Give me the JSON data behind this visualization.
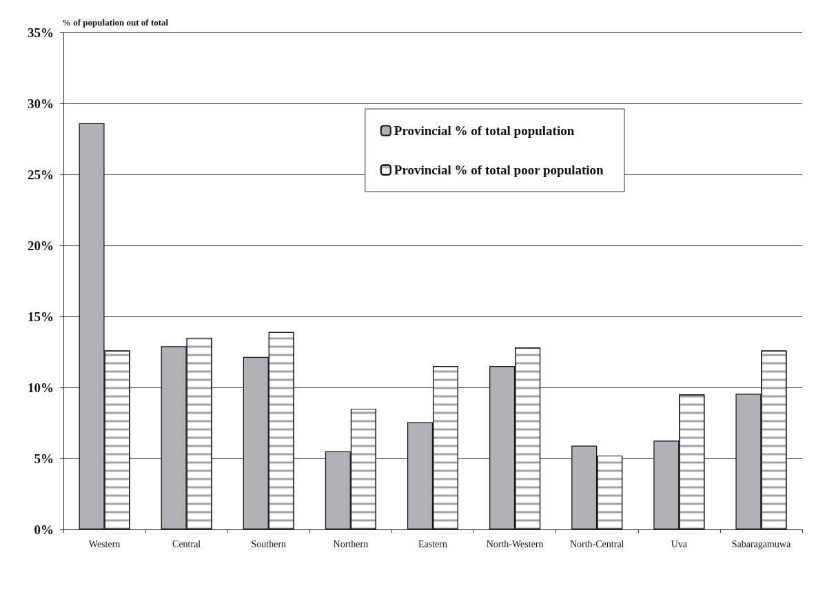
{
  "chart_data": {
    "type": "bar",
    "ylabel": "% of population out of total",
    "categories": [
      "Western",
      "Central",
      "Southern",
      "Northern",
      "Eastern",
      "North-Western",
      "North-Central",
      "Uva",
      "Sabaragamuwa"
    ],
    "series": [
      {
        "name": "Provincial % of total population",
        "color": "#b0b1b5",
        "values": [
          28.6,
          12.9,
          12.15,
          5.5,
          7.55,
          11.5,
          5.9,
          6.25,
          9.55
        ]
      },
      {
        "name": "Provincial % of total poor population",
        "color": "#ffffff",
        "values": [
          12.6,
          13.5,
          13.9,
          8.5,
          11.5,
          12.8,
          5.2,
          9.5,
          12.6
        ]
      }
    ],
    "ylim": [
      0,
      35
    ],
    "yticks": [
      {
        "value": 0,
        "label": "0%"
      },
      {
        "value": 5,
        "label": "5%"
      },
      {
        "value": 10,
        "label": "10%"
      },
      {
        "value": 15,
        "label": "15%"
      },
      {
        "value": 20,
        "label": "20%"
      },
      {
        "value": 25,
        "label": "25%"
      },
      {
        "value": 30,
        "label": "30%"
      },
      {
        "value": 35,
        "label": "35%"
      }
    ],
    "grid": "y",
    "legend": "top right"
  }
}
